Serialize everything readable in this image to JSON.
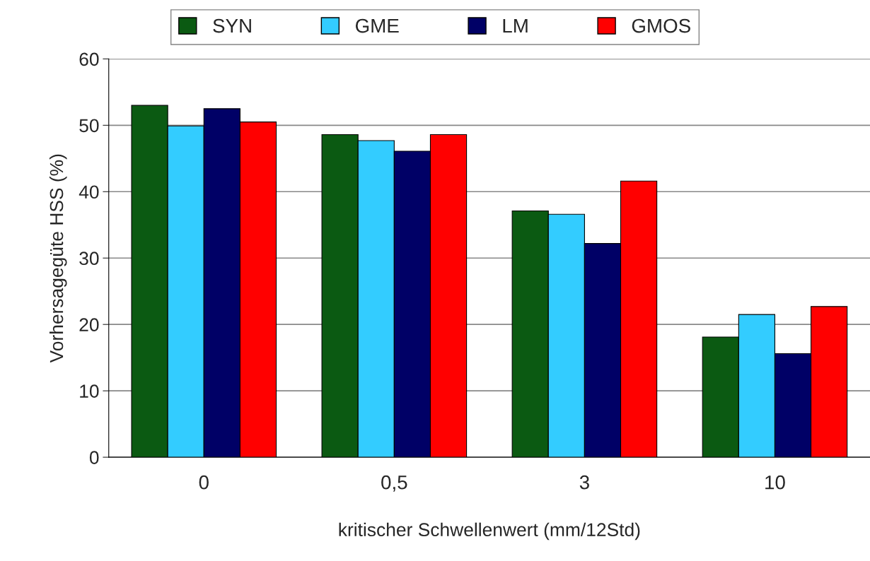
{
  "chart_data": {
    "type": "bar",
    "xlabel": "kritischer Schwellenwert (mm/12Std)",
    "ylabel": "Vorhersagegüte HSS (%)",
    "categories": [
      "0",
      "0,5",
      "3",
      "10"
    ],
    "series": [
      {
        "name": "SYN",
        "color": "#0b5a12",
        "values": [
          53.0,
          48.6,
          37.1,
          18.1
        ]
      },
      {
        "name": "GME",
        "color": "#33ccff",
        "values": [
          49.9,
          47.7,
          36.6,
          21.5
        ]
      },
      {
        "name": "LM",
        "color": "#000066",
        "values": [
          52.5,
          46.1,
          32.2,
          15.6
        ]
      },
      {
        "name": "GMOS",
        "color": "#ff0000",
        "values": [
          50.5,
          48.6,
          41.6,
          22.7
        ]
      }
    ],
    "ylim": [
      0,
      60
    ],
    "yticks": [
      0,
      10,
      20,
      30,
      40,
      50,
      60
    ],
    "grid": "y",
    "legend": "top"
  }
}
